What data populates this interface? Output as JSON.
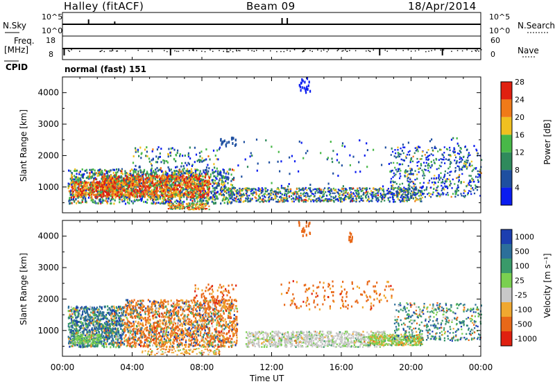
{
  "header": {
    "site": "Halley (fitACF)",
    "beam": "Beam 09",
    "date": "18/Apr/2014"
  },
  "nsky_panel": {
    "left_label": "N.Sky",
    "right_label": "N.Search",
    "left_ticks": [
      "10^5",
      "10^0"
    ],
    "right_ticks": [
      "10^5",
      "10^0"
    ]
  },
  "freq_panel": {
    "left_label_line1": "Freq.",
    "left_label_line2": "[MHz]",
    "right_label": "Nave",
    "left_ticks": [
      "18",
      "8"
    ],
    "right_ticks": [
      "60",
      "0"
    ]
  },
  "cpid_panel": {
    "label": "CPID",
    "mode": "normal (fast) 151"
  },
  "x_axis": {
    "label": "Time UT",
    "ticks": [
      "00:00",
      "04:00",
      "08:00",
      "12:00",
      "16:00",
      "20:00",
      "00:00"
    ]
  },
  "chart_data": [
    {
      "type": "heatmap",
      "title": "Power",
      "ylabel": "Slant Range [km]",
      "xlabel": "Time UT",
      "ylim": [
        180,
        4500
      ],
      "yticks": [
        "1000",
        "2000",
        "3000",
        "4000"
      ],
      "colorbar": {
        "label": "Power [dB]",
        "ticks": [
          "4",
          "8",
          "12",
          "16",
          "20",
          "24",
          "28"
        ],
        "colors": [
          "#0a1cf0",
          "#1e4fa0",
          "#2f8a5c",
          "#48b848",
          "#f0c020",
          "#f07a18",
          "#e02010"
        ]
      },
      "regions": [
        {
          "t0": 0.3,
          "t1": 9.8,
          "r0": 500,
          "r1": 1600,
          "level": "medium",
          "note": "broad backscatter"
        },
        {
          "t0": 2.2,
          "t1": 8.4,
          "r0": 700,
          "r1": 1400,
          "level": "high",
          "note": "strong echoes ~24-28 dB"
        },
        {
          "t0": 9.5,
          "t1": 20.6,
          "r0": 550,
          "r1": 1000,
          "level": "low-medium"
        },
        {
          "t0": 18.8,
          "t1": 24.0,
          "r0": 700,
          "r1": 2300,
          "level": "low"
        }
      ]
    },
    {
      "type": "heatmap",
      "title": "Velocity",
      "ylabel": "Slant Range [km]",
      "xlabel": "Time UT",
      "ylim": [
        180,
        4500
      ],
      "yticks": [
        "1000",
        "2000",
        "3000",
        "4000"
      ],
      "colorbar": {
        "label": "Velocity [m s⁻¹]",
        "ticks": [
          "1000",
          "500",
          "100",
          "25",
          "-25",
          "-100",
          "-500",
          "-1000"
        ],
        "colors": [
          "#1c3fb0",
          "#2c6f9a",
          "#3a9a6a",
          "#7ad050",
          "#c8c8c8",
          "#f0a830",
          "#e86818",
          "#e02010"
        ]
      },
      "regions": [
        {
          "t0": 0.3,
          "t1": 3.5,
          "r0": 500,
          "r1": 1800,
          "level": "positive"
        },
        {
          "t0": 3.5,
          "t1": 10.0,
          "r0": 500,
          "r1": 2000,
          "level": "negative"
        },
        {
          "t0": 10.5,
          "t1": 18.5,
          "r0": 500,
          "r1": 1000,
          "level": "near-zero"
        },
        {
          "t0": 17.5,
          "t1": 20.6,
          "r0": 550,
          "r1": 900,
          "level": "slightly-positive"
        }
      ]
    }
  ]
}
